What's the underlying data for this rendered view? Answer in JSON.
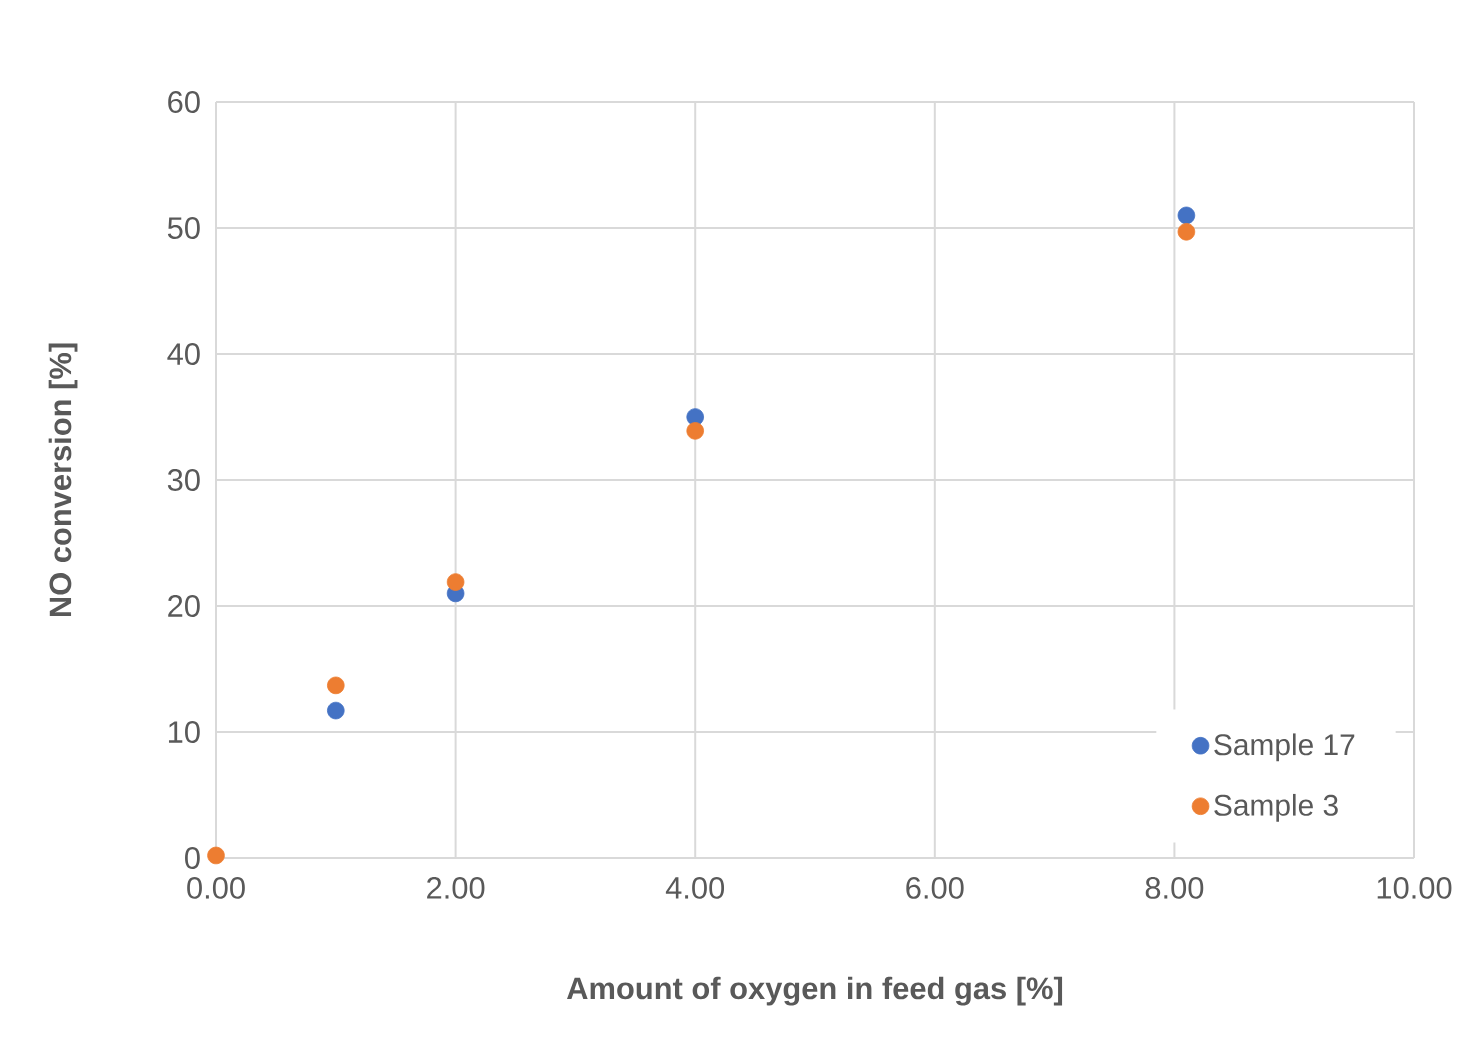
{
  "chart_data": {
    "type": "scatter",
    "xlabel": "Amount of oxygen in feed gas [%]",
    "ylabel": "NO conversion [%]",
    "xlim": [
      0,
      10
    ],
    "ylim": [
      0,
      60
    ],
    "xticks": [
      {
        "value": 0,
        "label": "0.00"
      },
      {
        "value": 2,
        "label": "2.00"
      },
      {
        "value": 4,
        "label": "4.00"
      },
      {
        "value": 6,
        "label": "6.00"
      },
      {
        "value": 8,
        "label": "8.00"
      },
      {
        "value": 10,
        "label": "10.00"
      }
    ],
    "yticks": [
      0,
      10,
      20,
      30,
      40,
      50,
      60
    ],
    "grid": true,
    "legend": "bottom right",
    "series": [
      {
        "name": "Sample 17",
        "color": "#4472c4",
        "x": [
          1,
          2,
          4,
          8.1
        ],
        "values": [
          11.7,
          21.0,
          35.0,
          51.0
        ]
      },
      {
        "name": "Sample 3",
        "color": "#ed7d31",
        "x": [
          0,
          1,
          2,
          4,
          8.1
        ],
        "values": [
          0.2,
          13.7,
          21.9,
          33.9,
          49.7
        ]
      }
    ]
  }
}
